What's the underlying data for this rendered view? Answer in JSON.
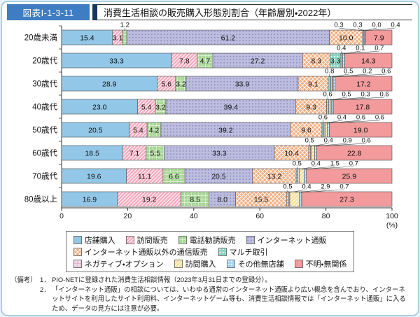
{
  "figure": {
    "number": "図表Ⅰ-1-3-11",
    "title": "消費生活相談の販売購入形態別割合（年齢層別・2022年）"
  },
  "chart_data": {
    "type": "bar",
    "orientation": "horizontal",
    "stacked": true,
    "unit": "%",
    "title": "消費生活相談の販売購入形態別割合（年齢層別・2022年）",
    "categories": [
      "20歳未満",
      "20歳代",
      "30歳代",
      "40歳代",
      "50歳代",
      "60歳代",
      "70歳代",
      "80歳以上"
    ],
    "series": [
      {
        "name": "店舗購入",
        "pattern": "solid",
        "color": "#92c7e8",
        "pattern_color": "",
        "values": [
          15.4,
          33.3,
          28.9,
          23.0,
          20.5,
          18.5,
          19.6,
          16.9
        ]
      },
      {
        "name": "訪問販売",
        "pattern": "diag",
        "color": "#f7a9be",
        "pattern_color": "#ffffff",
        "values": [
          3.1,
          7.8,
          5.6,
          5.4,
          5.4,
          7.1,
          11.1,
          19.2
        ]
      },
      {
        "name": "電話勧誘販売",
        "pattern": "grid",
        "color": "#a8d796",
        "pattern_color": "#ffffff",
        "values": [
          1.2,
          4.7,
          3.2,
          3.2,
          4.2,
          5.5,
          6.6,
          8.5
        ]
      },
      {
        "name": "インターネット通販",
        "pattern": "dots",
        "color": "#bdbdde",
        "pattern_color": "#9090c8",
        "values": [
          61.2,
          27.2,
          33.9,
          39.4,
          39.2,
          33.3,
          20.5,
          8.0
        ]
      },
      {
        "name": "インターネット通販以外の通信販売",
        "pattern": "cross",
        "color": "#f4ae80",
        "pattern_color": "#ffffff",
        "values": [
          10.0,
          8.3,
          9.1,
          9.3,
          9.6,
          10.4,
          13.2,
          15.5
        ]
      },
      {
        "name": "マルチ取引",
        "pattern": "dots",
        "color": "#8ed2c2",
        "pattern_color": "#ffffff",
        "values": [
          0.3,
          3.3,
          0.8,
          0.6,
          0.6,
          0.5,
          0.5,
          0.5
        ]
      },
      {
        "name": "ネガティブ・オプション",
        "pattern": "grid",
        "color": "#f0d8e8",
        "pattern_color": "#d49cc4",
        "values": [
          0.3,
          0.4,
          0.5,
          0.5,
          0.4,
          0.4,
          0.4,
          0.4
        ]
      },
      {
        "name": "訪問購入",
        "pattern": "diag",
        "color": "#f6de92",
        "pattern_color": "#ffffff",
        "values": [
          0.0,
          0.1,
          0.2,
          0.3,
          0.6,
          0.9,
          1.5,
          2.9
        ]
      },
      {
        "name": "その他無店舗",
        "pattern": "dots",
        "color": "#a6d6f0",
        "pattern_color": "#ffffff",
        "values": [
          0.4,
          0.7,
          0.6,
          0.6,
          0.6,
          0.6,
          0.7,
          0.7
        ]
      },
      {
        "name": "不明・無関係",
        "pattern": "solid",
        "color": "#f29a9c",
        "pattern_color": "",
        "values": [
          7.9,
          14.3,
          17.2,
          17.8,
          19.0,
          22.8,
          25.9,
          27.3
        ]
      }
    ],
    "x_axis": {
      "ticks": [
        0,
        20,
        40,
        60,
        80,
        100
      ],
      "max": 100,
      "unit_label": "(%)"
    },
    "legend_rows": [
      [
        0,
        1,
        2,
        3
      ],
      [
        4,
        5
      ],
      [
        6,
        7,
        8,
        9
      ]
    ],
    "legend_position": "bottom",
    "grid": false,
    "value_label_threshold_inside": 3.0
  },
  "footnote": {
    "label": "（備考）",
    "notes": [
      {
        "num": "1．",
        "text": "PIO-NETに登録された消費生活相談情報（2023年3月31日までの登録分）。"
      },
      {
        "num": "2．",
        "text": "「インターネット通販」の相談については、いわゆる通常のインターネット通販より広い概念を含んでおり、インターネットサイトを利用したサイト利用料、インターネットゲーム等も、消費生活相談情報では「インターネット通販」に入るため、データの見方には注意が必要。"
      }
    ]
  },
  "colors": {
    "badge_bg": "#3f7dc2",
    "separator": "#17365d",
    "outer_border": "#a9cfe3",
    "segment_stroke": "#4a4a4a"
  }
}
